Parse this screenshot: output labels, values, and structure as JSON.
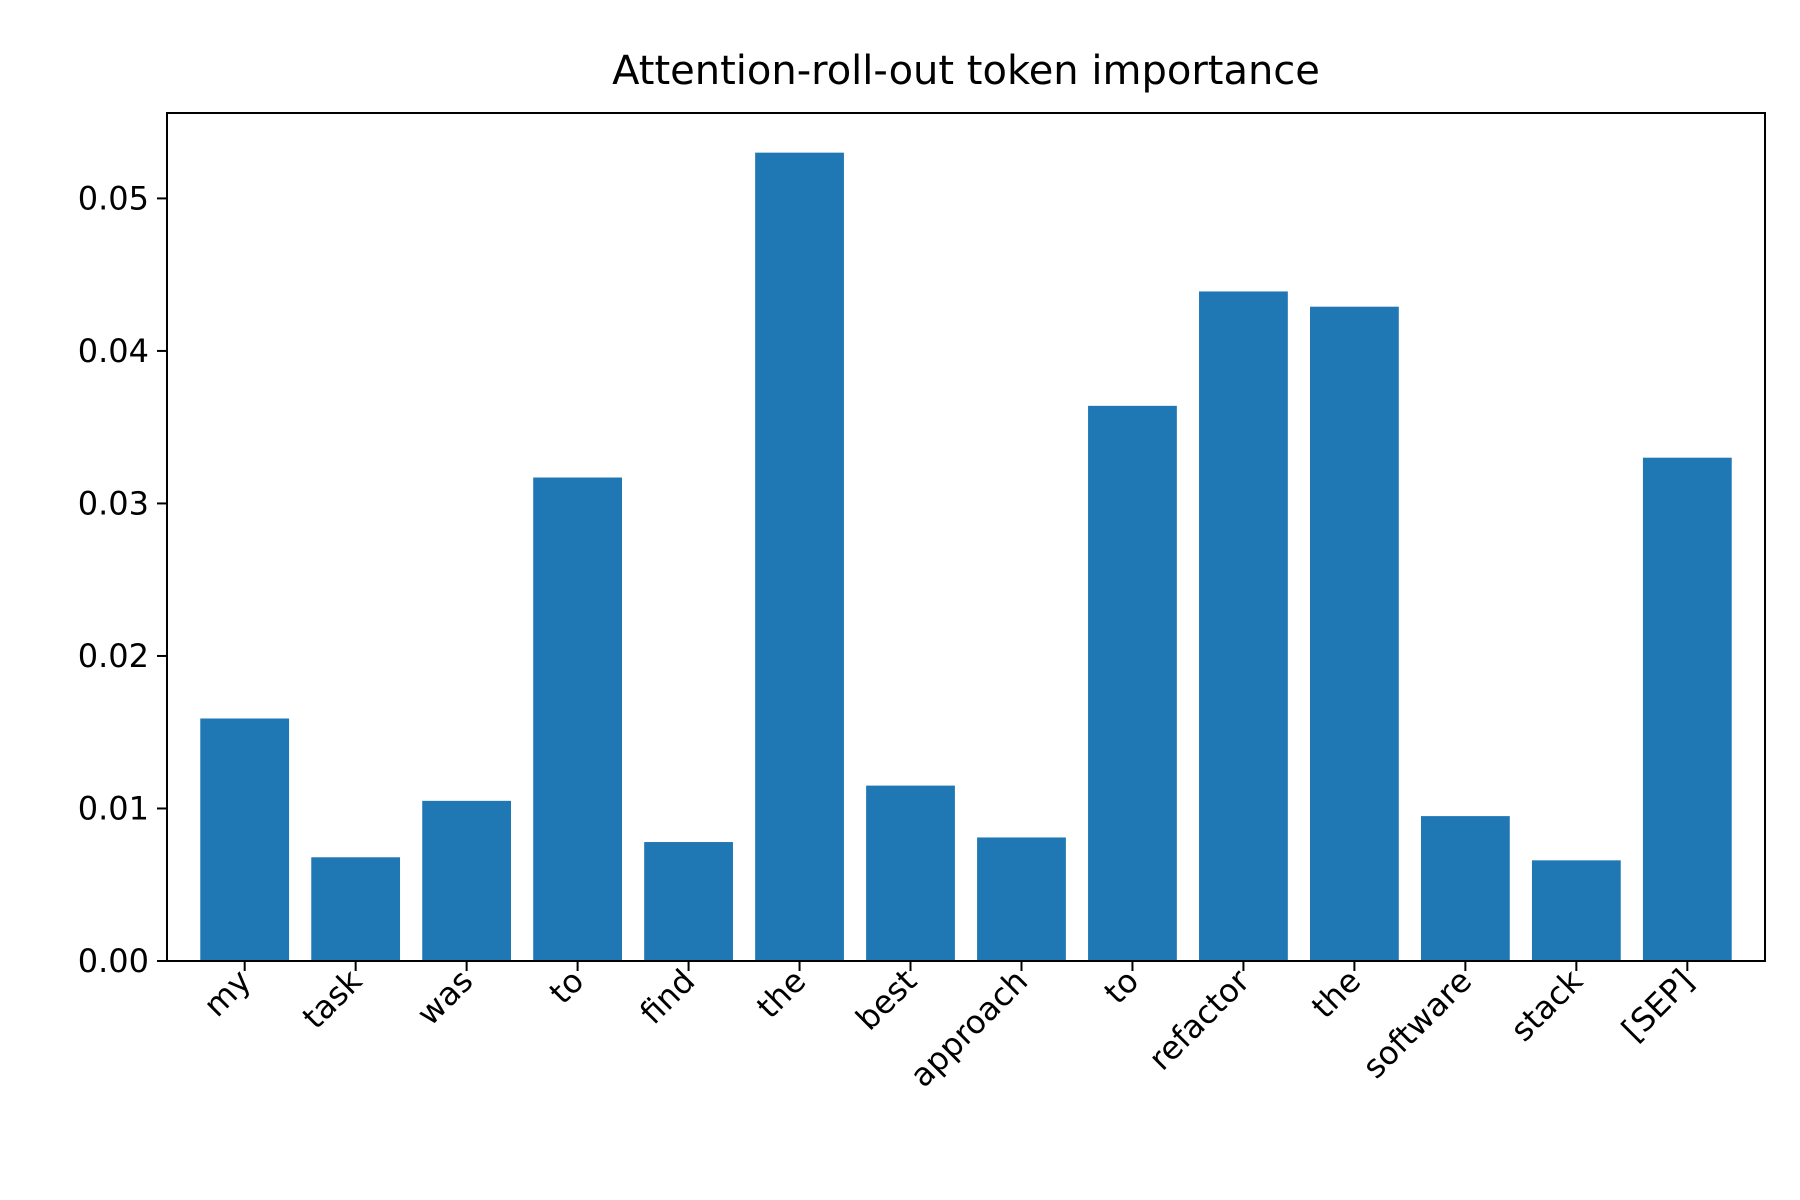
{
  "chart_data": {
    "type": "bar",
    "title": "Attention-roll-out token importance",
    "xlabel": "",
    "ylabel": "",
    "categories": [
      "my",
      "task",
      "was",
      "to",
      "find",
      "the",
      "best",
      "approach",
      "to",
      "refactor",
      "the",
      "software",
      "stack",
      "[SEP]"
    ],
    "values": [
      0.0159,
      0.0068,
      0.0105,
      0.0317,
      0.0078,
      0.053,
      0.0115,
      0.0081,
      0.0364,
      0.0439,
      0.0429,
      0.0095,
      0.0066,
      0.033
    ],
    "ylim": [
      0,
      0.0556
    ],
    "yticks": [
      0.0,
      0.01,
      0.02,
      0.03,
      0.04,
      0.05
    ],
    "ytick_labels": [
      "0.00",
      "0.01",
      "0.02",
      "0.03",
      "0.04",
      "0.05"
    ],
    "bar_color": "#1f77b4",
    "grid": false,
    "legend": "none"
  }
}
